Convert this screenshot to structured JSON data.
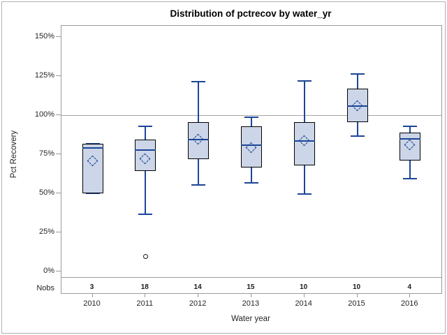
{
  "chart": {
    "title": "Distribution of pctrecov by water_yr",
    "x_axis_label": "Water year",
    "y_axis_label": "Pct Recovery",
    "nobs_row_label": "Nobs"
  },
  "chart_data": {
    "type": "boxplot",
    "title": "Distribution of pctrecov by water_yr",
    "xlabel": "Water year",
    "ylabel": "Pct Recovery",
    "units": "percent",
    "y_ticks": [
      0,
      25,
      50,
      75,
      100,
      125,
      150
    ],
    "y_tick_suffix": "%",
    "ylim": [
      -4,
      157
    ],
    "reference_line": 100,
    "grid": false,
    "legend_position": "none",
    "categories": [
      "2010",
      "2011",
      "2012",
      "2013",
      "2014",
      "2015",
      "2016"
    ],
    "nobs": [
      3,
      18,
      14,
      15,
      10,
      10,
      4
    ],
    "series": [
      {
        "category": "2010",
        "nobs": 3,
        "min": 50,
        "q1": 50,
        "median": 79,
        "q3": 81.5,
        "max": 81.5,
        "mean": 70.5,
        "outliers": []
      },
      {
        "category": "2011",
        "nobs": 18,
        "min": 36.5,
        "q1": 64.5,
        "median": 77.5,
        "q3": 84.5,
        "max": 93,
        "mean": 72,
        "outliers": [
          9.5
        ]
      },
      {
        "category": "2012",
        "nobs": 14,
        "min": 55.5,
        "q1": 72,
        "median": 84.5,
        "q3": 95.5,
        "max": 121.5,
        "mean": 84.5,
        "outliers": []
      },
      {
        "category": "2013",
        "nobs": 15,
        "min": 56.5,
        "q1": 66.5,
        "median": 81,
        "q3": 93,
        "max": 98.5,
        "mean": 79,
        "outliers": []
      },
      {
        "category": "2014",
        "nobs": 10,
        "min": 49.5,
        "q1": 68,
        "median": 83.5,
        "q3": 95.5,
        "max": 122,
        "mean": 83.5,
        "outliers": []
      },
      {
        "category": "2015",
        "nobs": 10,
        "min": 86.5,
        "q1": 95.5,
        "median": 106,
        "q3": 117,
        "max": 126.5,
        "mean": 106,
        "outliers": []
      },
      {
        "category": "2016",
        "nobs": 4,
        "min": 59.5,
        "q1": 71,
        "median": 85,
        "q3": 89,
        "max": 93,
        "mean": 81,
        "outliers": []
      }
    ]
  },
  "colors": {
    "box_fill": "#ccd6e8",
    "box_border": "#000000",
    "line_blue": "#1c4596",
    "outlier": "#1a1a1a",
    "reference_line": "#a6a6a6",
    "frame": "#9b9b9b",
    "text": "#262626"
  }
}
